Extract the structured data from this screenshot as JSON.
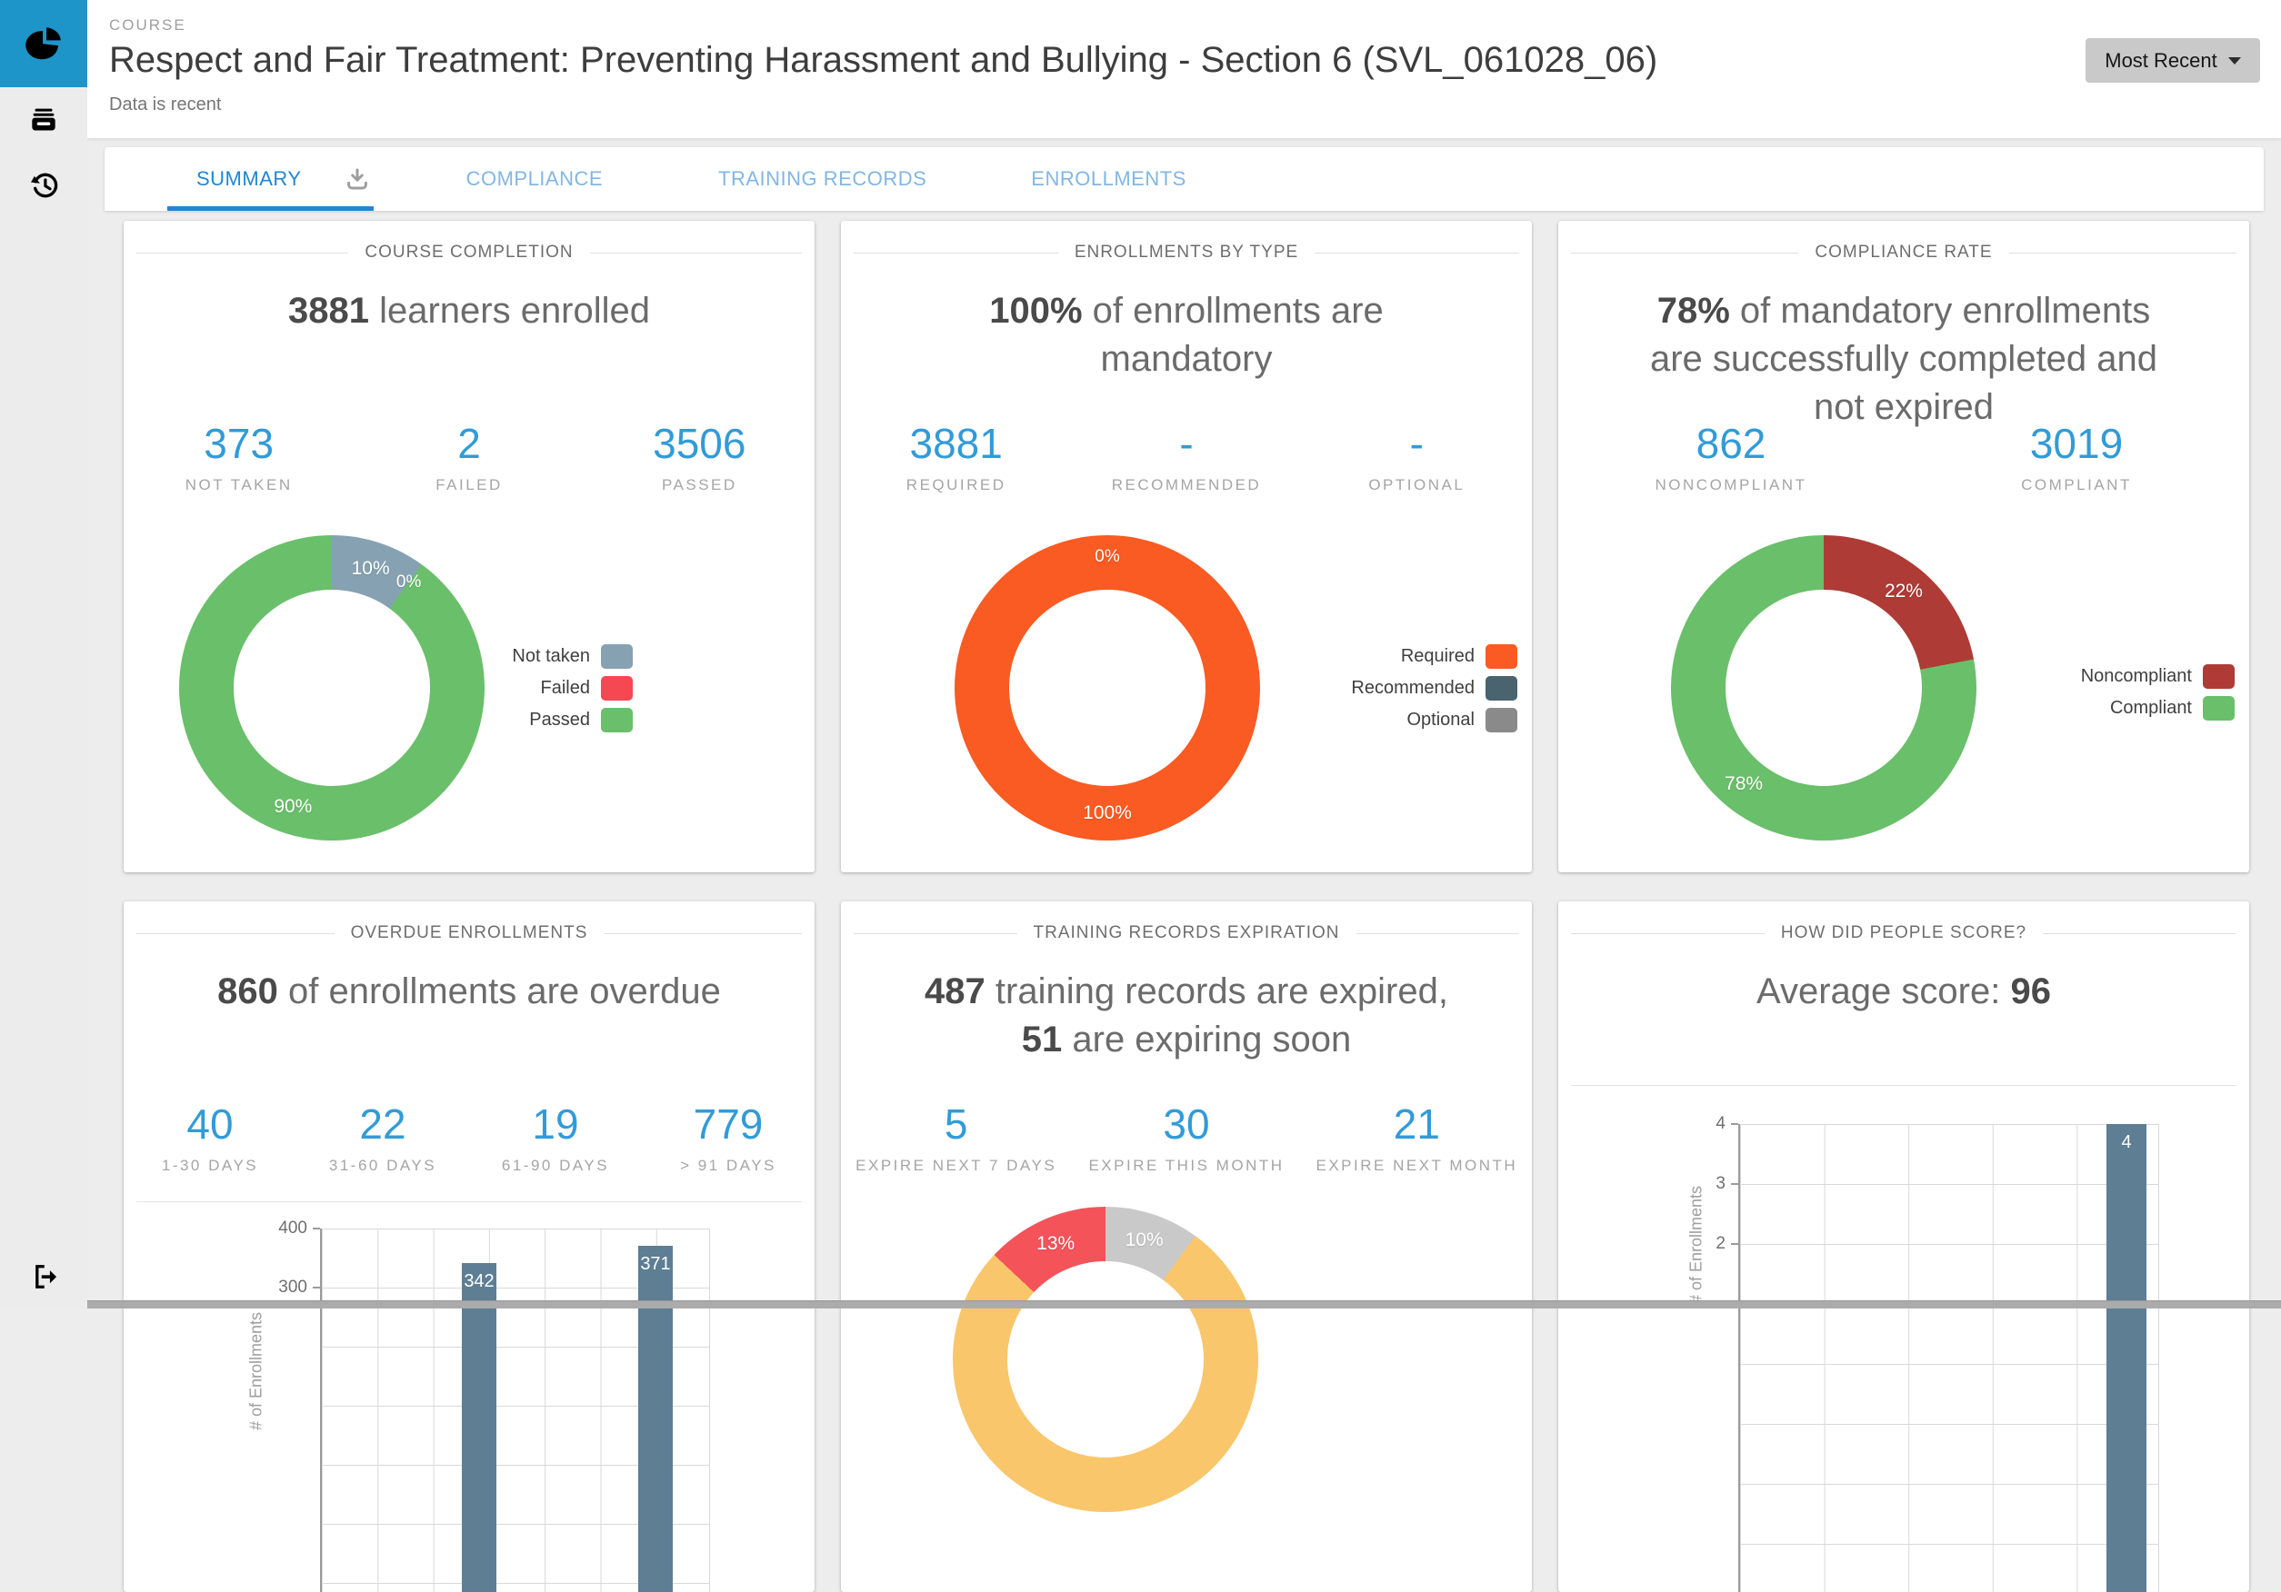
{
  "sidebar": {
    "logo_icon": "pie-chart-icon",
    "nav_icons": [
      "inbox-icon",
      "history-icon"
    ],
    "logout_icon": "logout-icon"
  },
  "header": {
    "eyebrow": "COURSE",
    "title": "Respect and Fair Treatment: Preventing Harassment and Bullying - Section 6 (SVL_061028_06)",
    "status": "Data is recent",
    "filter_button": {
      "label": "Most Recent"
    }
  },
  "tabs": [
    {
      "label": "SUMMARY",
      "active": true
    },
    {
      "label": "COMPLIANCE",
      "active": false
    },
    {
      "label": "TRAINING RECORDS",
      "active": false
    },
    {
      "label": "ENROLLMENTS",
      "active": false
    }
  ],
  "colors": {
    "accent_blue": "#1f87d4",
    "stat_blue": "#319bd8",
    "sidebar_blue": "#1e95c8",
    "bar_slate": "#5d7e93"
  },
  "cards": [
    {
      "title": "COURSE COMPLETION",
      "headline": {
        "value": "3881",
        "text": " learners enrolled"
      },
      "stats": [
        {
          "value": "373",
          "label": "NOT TAKEN"
        },
        {
          "value": "2",
          "label": "FAILED"
        },
        {
          "value": "3506",
          "label": "PASSED"
        }
      ],
      "chart_data": {
        "type": "donut",
        "legend_position": "right",
        "slices": [
          {
            "label": "Not taken",
            "pct": 10,
            "color": "#86a2b2",
            "display": "10%"
          },
          {
            "label": "Failed",
            "pct": 0,
            "color": "#f64852",
            "display": "0%"
          },
          {
            "label": "Passed",
            "pct": 90,
            "color": "#6abf6a",
            "display": "90%"
          }
        ]
      }
    },
    {
      "title": "ENROLLMENTS BY TYPE",
      "headline": {
        "value": "100%",
        "text": " of enrollments are mandatory"
      },
      "stats": [
        {
          "value": "3881",
          "label": "REQUIRED"
        },
        {
          "value": "-",
          "label": "RECOMMENDED"
        },
        {
          "value": "-",
          "label": "OPTIONAL"
        }
      ],
      "chart_data": {
        "type": "donut",
        "legend_position": "right",
        "slices": [
          {
            "label": "Required",
            "pct": 100,
            "color": "#f95b22",
            "display": "100%"
          },
          {
            "label": "Recommended",
            "pct": 0,
            "color": "#49636f",
            "display": "0%"
          },
          {
            "label": "Optional",
            "pct": 0,
            "color": "#8a8a8a",
            "display": ""
          }
        ]
      }
    },
    {
      "title": "COMPLIANCE RATE",
      "headline": {
        "value": "78%",
        "text": " of mandatory enrollments are successfully completed and not expired"
      },
      "stats": [
        {
          "value": "862",
          "label": "NONCOMPLIANT"
        },
        {
          "value": "3019",
          "label": "COMPLIANT"
        }
      ],
      "chart_data": {
        "type": "donut",
        "legend_position": "right",
        "slices": [
          {
            "label": "Noncompliant",
            "pct": 22,
            "color": "#ae3b36",
            "display": "22%"
          },
          {
            "label": "Compliant",
            "pct": 78,
            "color": "#6abf6a",
            "display": "78%"
          }
        ]
      }
    },
    {
      "title": "OVERDUE ENROLLMENTS",
      "headline": {
        "value": "860",
        "text": " of enrollments are overdue"
      },
      "stats": [
        {
          "value": "40",
          "label": "1-30 DAYS"
        },
        {
          "value": "22",
          "label": "31-60 DAYS"
        },
        {
          "value": "19",
          "label": "61-90 DAYS"
        },
        {
          "value": "779",
          "label": "> 91 DAYS"
        }
      ],
      "chart_data": {
        "type": "bar",
        "ylabel": "# of Enrollments",
        "y_ticks": [
          "400",
          "300"
        ],
        "values": [
          342,
          371
        ],
        "bar_labels": [
          "342",
          "371"
        ],
        "bar_color": "#5d7e93"
      }
    },
    {
      "title": "TRAINING RECORDS EXPIRATION",
      "headline_lines": [
        {
          "value": "487",
          "text": " training records are expired,"
        },
        {
          "value": "51",
          "text": " are expiring soon"
        }
      ],
      "stats": [
        {
          "value": "5",
          "label": "EXPIRE NEXT 7 DAYS"
        },
        {
          "value": "30",
          "label": "EXPIRE THIS MONTH"
        },
        {
          "value": "21",
          "label": "EXPIRE NEXT MONTH"
        }
      ],
      "chart_data": {
        "type": "donut",
        "slices": [
          {
            "pct": 10,
            "color": "#c9c9c9",
            "display": "10%"
          },
          {
            "pct": 77,
            "color": "#f9c66b",
            "display": ""
          },
          {
            "pct": 13,
            "color": "#f4535a",
            "display": "13%"
          }
        ]
      }
    },
    {
      "title": "HOW DID PEOPLE SCORE?",
      "headline": {
        "text": "Average score: ",
        "value": "96"
      },
      "chart_data": {
        "type": "bar",
        "ylabel": "# of Enrollments",
        "y_ticks": [
          "4",
          "3",
          "2"
        ],
        "values": [
          4
        ],
        "bar_labels": [
          "4"
        ],
        "bar_color": "#5d7e93"
      }
    }
  ]
}
